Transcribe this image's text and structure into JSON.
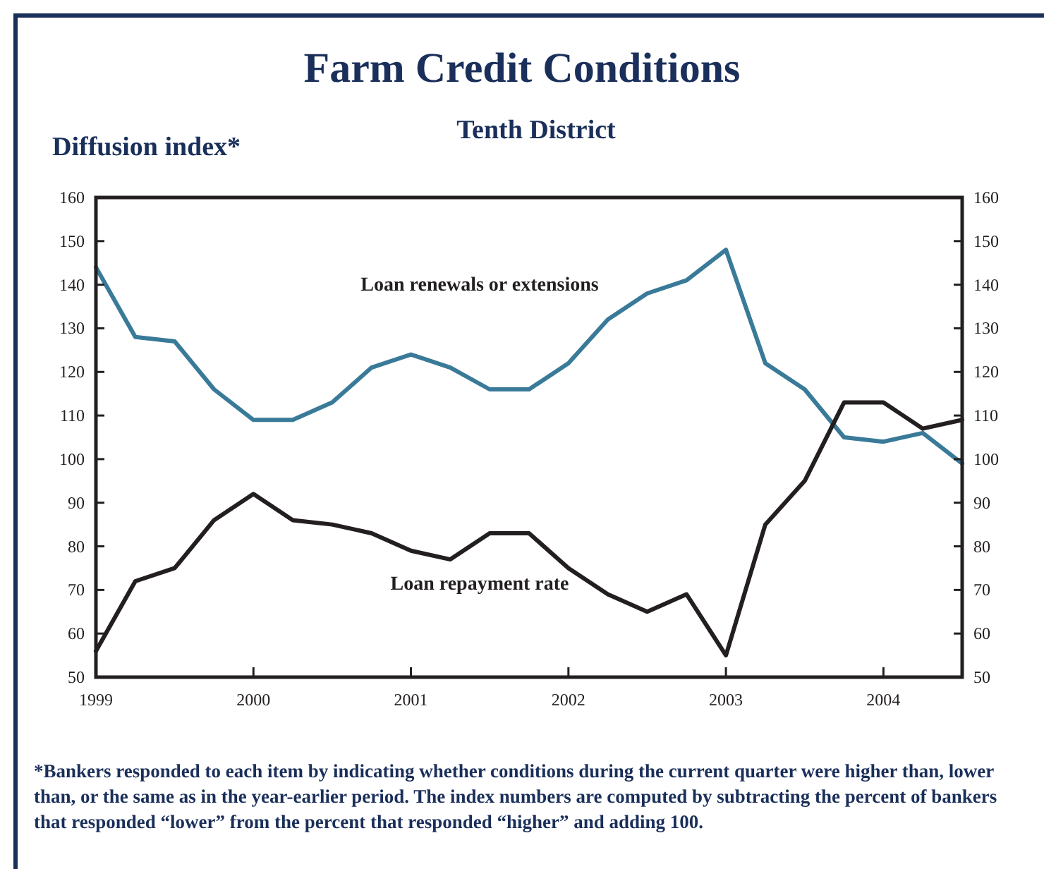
{
  "chart_data": {
    "type": "line",
    "title": "Farm Credit Conditions",
    "subtitle": "Tenth District",
    "ylabel": "Diffusion index*",
    "x": [
      1999,
      1999.25,
      1999.5,
      1999.75,
      2000,
      2000.25,
      2000.5,
      2000.75,
      2001,
      2001.25,
      2001.5,
      2001.75,
      2002,
      2002.25,
      2002.5,
      2002.75,
      2003,
      2003.25,
      2003.5,
      2003.75,
      2004,
      2004.25,
      2004.5
    ],
    "xlim": [
      1999,
      2004.5
    ],
    "xticks": [
      1999,
      2000,
      2001,
      2002,
      2003,
      2004
    ],
    "ylim": [
      50,
      160
    ],
    "yticks": [
      50,
      60,
      70,
      80,
      90,
      100,
      110,
      120,
      130,
      140,
      150,
      160
    ],
    "y2lim": [
      50,
      160
    ],
    "y2ticks": [
      50,
      60,
      70,
      80,
      90,
      100,
      110,
      120,
      130,
      140,
      150,
      160
    ],
    "grid": false,
    "marker": "none",
    "line_style": "solid",
    "series": [
      {
        "name": "Loan renewals or extensions",
        "color": "#3a7a99",
        "values": [
          144,
          128,
          127,
          116,
          109,
          109,
          113,
          121,
          124,
          121,
          116,
          116,
          122,
          132,
          138,
          141,
          148,
          122,
          116,
          105,
          104,
          106,
          99
        ]
      },
      {
        "name": "Loan repayment rate",
        "color": "#231f20",
        "values": [
          56,
          72,
          75,
          86,
          92,
          86,
          85,
          83,
          79,
          77,
          83,
          83,
          75,
          69,
          65,
          69,
          55,
          85,
          95,
          113,
          113,
          107,
          109
        ]
      }
    ],
    "annotations": [
      "*Bankers responded to each item by indicating whether conditions during the current quarter were higher than, lower than, or the same as in the year-earlier period.  The index numbers are computed by subtracting the percent of bankers that responded “lower” from the percent that responded “higher” and adding 100."
    ]
  }
}
